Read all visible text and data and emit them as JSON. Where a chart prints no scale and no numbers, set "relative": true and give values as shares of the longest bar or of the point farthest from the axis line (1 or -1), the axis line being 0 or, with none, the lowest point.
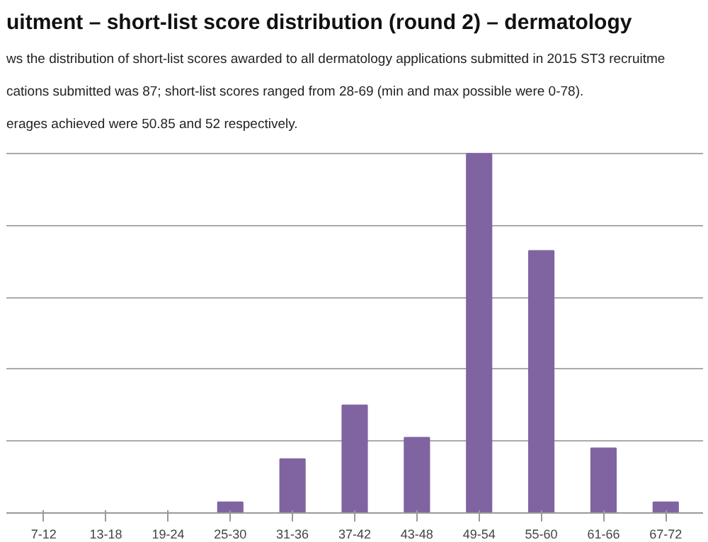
{
  "chart_data": {
    "type": "bar",
    "title": "uitment – short-list score distribution (round 2) – dermatology",
    "annotations": [
      "ws the distribution of short-list scores awarded to all dermatology applications submitted in 2015 ST3 recruitme",
      "cations submitted was 87; short-list scores ranged from 28-69 (min and max possible were 0-78).",
      "erages achieved were 50.85 and 52 respectively."
    ],
    "categories": [
      "7-12",
      "13-18",
      "19-24",
      "25-30",
      "31-36",
      "37-42",
      "43-48",
      "49-54",
      "55-60",
      "61-66",
      "67-72"
    ],
    "values": [
      0,
      0,
      0,
      0.03,
      0.15,
      0.3,
      0.21,
      1,
      0.73,
      0.18,
      0.03
    ],
    "color": "#8064a2",
    "relative": true,
    "grid": "y"
  }
}
